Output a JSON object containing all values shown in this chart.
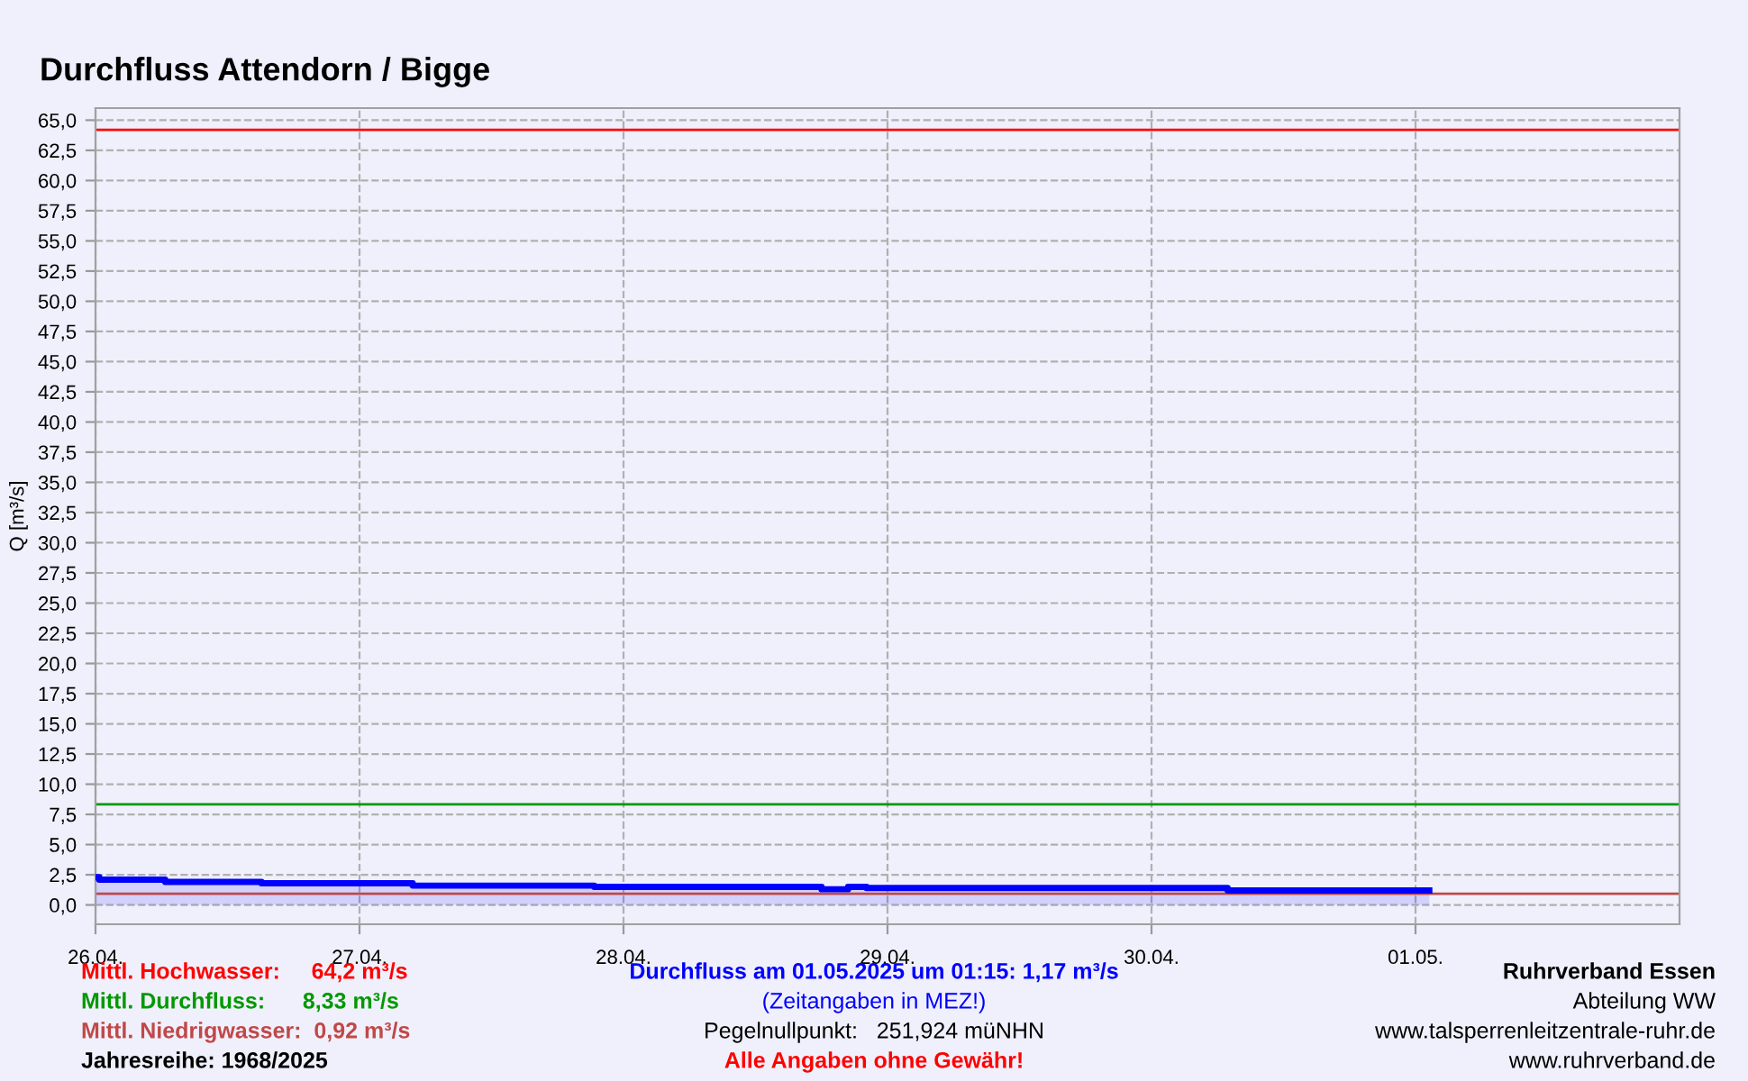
{
  "chart_data": {
    "type": "area",
    "title": "Durchfluss Attendorn / Bigge",
    "ylabel": "Q [m³/s]",
    "x": [
      "2025-04-26T00:00",
      "2025-04-26T00:20",
      "2025-04-26T00:20",
      "2025-04-26T06:20",
      "2025-04-26T06:20",
      "2025-04-26T15:05",
      "2025-04-26T15:05",
      "2025-04-27T04:50",
      "2025-04-27T04:50",
      "2025-04-27T21:20",
      "2025-04-27T21:20",
      "2025-04-28T18:00",
      "2025-04-28T18:00",
      "2025-04-28T20:25",
      "2025-04-28T20:25",
      "2025-04-28T22:05",
      "2025-04-28T22:05",
      "2025-04-30T06:55",
      "2025-04-30T06:55",
      "2025-05-01T01:15"
    ],
    "series": [
      {
        "name": "Durchfluss am 01.05.2025 um 01:15: 1,17 m³/s",
        "color": "#0000ff",
        "values": [
          2.3,
          2.3,
          2.1,
          2.1,
          1.9,
          1.9,
          1.8,
          1.8,
          1.6,
          1.6,
          1.5,
          1.5,
          1.3,
          1.3,
          1.5,
          1.5,
          1.4,
          1.4,
          1.2,
          1.2
        ]
      }
    ],
    "xlim": [
      "2025-04-26T00:00",
      "2025-05-02T00:00"
    ],
    "xticks": [
      {
        "value": "2025-04-26",
        "label": "26.04."
      },
      {
        "value": "2025-04-27",
        "label": "27.04."
      },
      {
        "value": "2025-04-28",
        "label": "28.04."
      },
      {
        "value": "2025-04-29",
        "label": "29.04."
      },
      {
        "value": "2025-04-30",
        "label": "30.04."
      },
      {
        "value": "2025-05-01",
        "label": "01.05."
      }
    ],
    "ylim": [
      -1.6,
      66
    ],
    "yticks": [
      {
        "value": 0,
        "label": "0,0"
      },
      {
        "value": 2.5,
        "label": "2,5"
      },
      {
        "value": 5,
        "label": "5,0"
      },
      {
        "value": 7.5,
        "label": "7,5"
      },
      {
        "value": 10,
        "label": "10,0"
      },
      {
        "value": 12.5,
        "label": "12,5"
      },
      {
        "value": 15,
        "label": "15,0"
      },
      {
        "value": 17.5,
        "label": "17,5"
      },
      {
        "value": 20,
        "label": "20,0"
      },
      {
        "value": 22.5,
        "label": "22,5"
      },
      {
        "value": 25,
        "label": "25,0"
      },
      {
        "value": 27.5,
        "label": "27,5"
      },
      {
        "value": 30,
        "label": "30,0"
      },
      {
        "value": 32.5,
        "label": "32,5"
      },
      {
        "value": 35,
        "label": "35,0"
      },
      {
        "value": 37.5,
        "label": "37,5"
      },
      {
        "value": 40,
        "label": "40,0"
      },
      {
        "value": 42.5,
        "label": "42,5"
      },
      {
        "value": 45,
        "label": "45,0"
      },
      {
        "value": 47.5,
        "label": "47,5"
      },
      {
        "value": 50,
        "label": "50,0"
      },
      {
        "value": 52.5,
        "label": "52,5"
      },
      {
        "value": 55,
        "label": "55,0"
      },
      {
        "value": 57.5,
        "label": "57,5"
      },
      {
        "value": 60,
        "label": "60,0"
      },
      {
        "value": 62.5,
        "label": "62,5"
      },
      {
        "value": 65,
        "label": "65,0"
      }
    ],
    "ref_lines": [
      {
        "axis": "y",
        "value": 64.2,
        "label": "Mittl. Hochwasser:     64,2 m³/s",
        "color": "#ff0000"
      },
      {
        "axis": "y",
        "value": 8.33,
        "label": "Mittl. Durchfluss:      8,33 m³/s",
        "color": "#009900"
      },
      {
        "axis": "y",
        "value": 0.92,
        "label": "Mittl. Niedrigwasser:  0,92 m³/s",
        "color": "#c04848"
      }
    ],
    "annotations": [
      "Jahresreihe: 1968/2025",
      "(Zeitangaben in MEZ!)",
      "Pegelnullpunkt:   251,924 müNHN",
      "Alle Angaben ohne Gewähr!",
      "Ruhrverband Essen",
      "Abteilung WW",
      "www.talsperrenleitzentrale-ruhr.de",
      "www.ruhrverband.de"
    ],
    "grid": true,
    "line_style": "solid"
  }
}
